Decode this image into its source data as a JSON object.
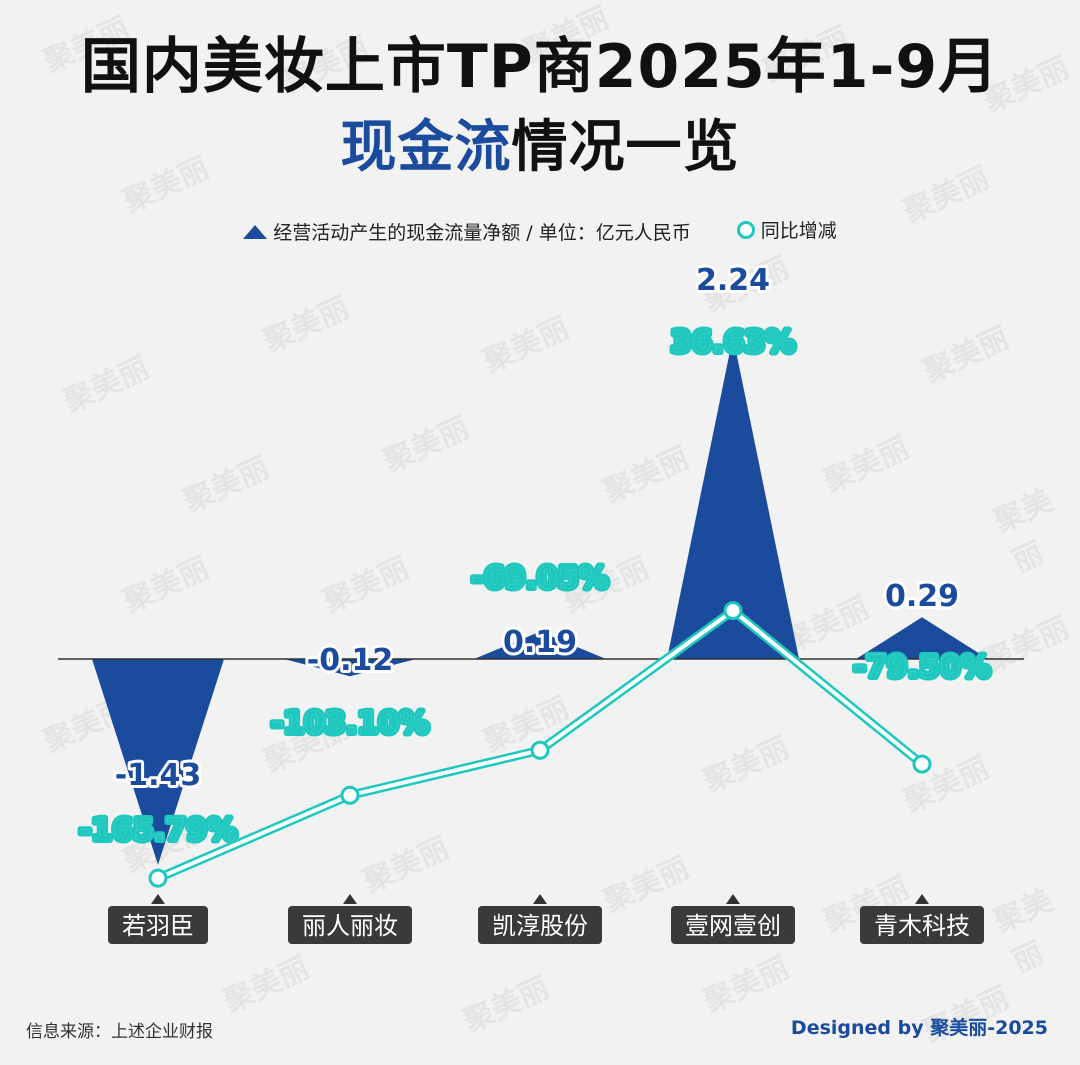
{
  "title": {
    "line1": "国内美妆上市TP商2025年1-9月",
    "line2_accent": "现金流",
    "line2_rest": "情况一览"
  },
  "legend": {
    "bar_label": "经营活动产生的现金流量净额 / 单位：亿元人民币",
    "line_label": "同比增减"
  },
  "colors": {
    "bar": "#1a4b9c",
    "line": "#1ec8bf",
    "accent": "#1a4b9c"
  },
  "chart_data": {
    "type": "bar",
    "categories": [
      "若羽臣",
      "丽人丽妆",
      "凯淳股份",
      "壹网壹创",
      "青木科技"
    ],
    "series": [
      {
        "name": "经营活动产生的现金流量净额 / 单位：亿元人民币",
        "values": [
          -1.43,
          -0.12,
          0.19,
          2.24,
          0.29
        ],
        "labels": [
          "-1.43",
          "-0.12",
          "0.19",
          "2.24",
          "0.29"
        ]
      },
      {
        "name": "同比增减",
        "values": [
          -165.79,
          -103.1,
          -69.05,
          36.63,
          -79.5
        ],
        "labels": [
          "-165.79%",
          "-103.10%",
          "-69.05%",
          "36.63%",
          "-79.50%"
        ]
      }
    ]
  },
  "footer": {
    "source": "信息来源：上述企业财报",
    "credit": "Designed by 聚美丽-2025"
  },
  "watermark": "聚美丽"
}
